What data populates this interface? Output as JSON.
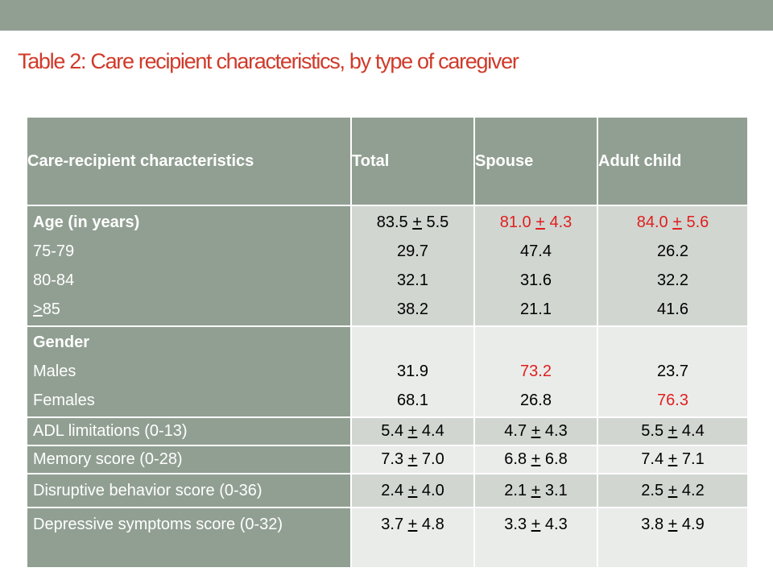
{
  "title": "Table 2: Care recipient characteristics, by type of caregiver",
  "colors": {
    "header_bg": "#919f92",
    "title": "#d03a2a",
    "highlight": "#e01f1f"
  },
  "headers": [
    "Care-recipient characteristics",
    "Total",
    "Spouse",
    "Adult child"
  ],
  "pm": "+",
  "age": {
    "label": "Age (in years)",
    "groups": [
      "75-79",
      "80-84",
      ">85"
    ],
    "mean": {
      "total": [
        "83.5",
        "5.5"
      ],
      "spouse": [
        "81.0",
        "4.3"
      ],
      "child": [
        "84.0",
        "5.6"
      ]
    },
    "total": [
      "29.7",
      "32.1",
      "38.2"
    ],
    "spouse": [
      "47.4",
      "31.6",
      "21.1"
    ],
    "child": [
      "26.2",
      "32.2",
      "41.6"
    ]
  },
  "gender": {
    "label": "Gender",
    "groups": [
      "Males",
      "Females"
    ],
    "total": [
      "31.9",
      "68.1"
    ],
    "spouse": [
      "73.2",
      "26.8"
    ],
    "child": [
      "23.7",
      "76.3"
    ]
  },
  "rows": [
    {
      "label": "ADL limitations (0-13)",
      "total": [
        "5.4",
        "4.4"
      ],
      "spouse": [
        "4.7",
        "4.3"
      ],
      "child": [
        "5.5",
        "4.4"
      ]
    },
    {
      "label": "Memory score (0-28)",
      "total": [
        "7.3",
        "7.0"
      ],
      "spouse": [
        "6.8",
        "6.8"
      ],
      "child": [
        "7.4",
        "7.1"
      ]
    },
    {
      "label": "Disruptive behavior score (0-36)",
      "total": [
        "2.4",
        "4.0"
      ],
      "spouse": [
        "2.1",
        "3.1"
      ],
      "child": [
        "2.5",
        "4.2"
      ]
    },
    {
      "label": "Depressive symptoms score (0-32)",
      "total": [
        "3.7",
        "4.8"
      ],
      "spouse": [
        "3.3",
        "4.3"
      ],
      "child": [
        "3.8",
        "4.9"
      ]
    }
  ]
}
